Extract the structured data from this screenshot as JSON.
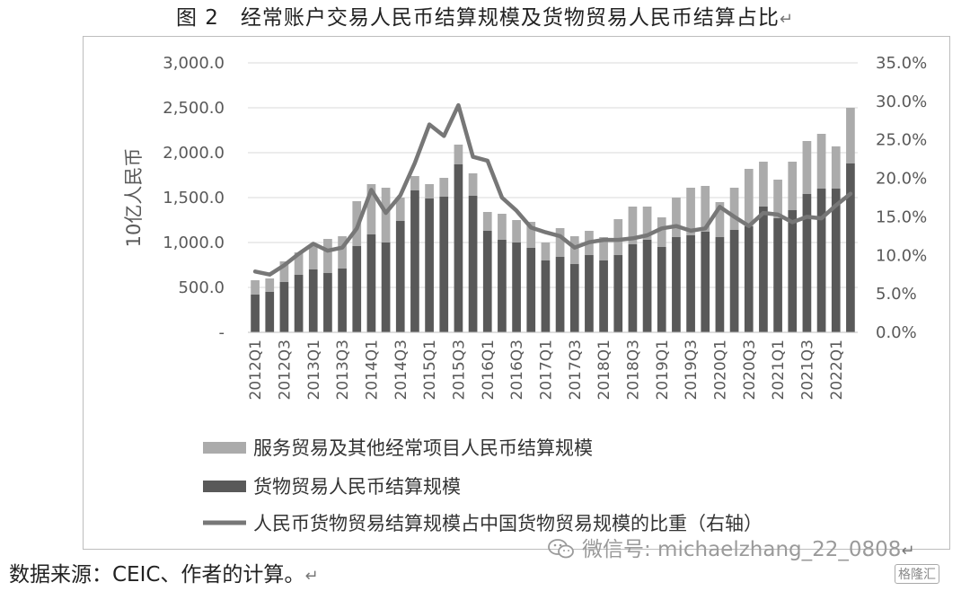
{
  "title": "图 2　经常账户交易人民币结算规模及货物贸易人民币结算占比",
  "source": "数据来源：CEIC、作者的计算。",
  "watermark": "微信号: michaelzhang_22_0808",
  "brand": "格隆汇",
  "return_mark": "↵",
  "colors": {
    "services": "#ababab",
    "goods": "#595959",
    "line": "#777777",
    "grid": "#d9d9d9",
    "axis_text": "#595959"
  },
  "chart_data": {
    "type": "bar",
    "stacked": true,
    "ylabel": "10亿人民币",
    "ylim": [
      0,
      3000
    ],
    "y_ticks": [
      "-",
      "500.0",
      "1,000.0",
      "1,500.0",
      "2,000.0",
      "2,500.0",
      "3,000.0"
    ],
    "y2lim": [
      0,
      35
    ],
    "y2_ticks": [
      "0.0%",
      "5.0%",
      "10.0%",
      "15.0%",
      "20.0%",
      "25.0%",
      "30.0%",
      "35.0%"
    ],
    "grid": true,
    "legend_position": "bottom",
    "x_tick_labels": [
      "2012Q1",
      "2012Q3",
      "2013Q1",
      "2013Q3",
      "2014Q1",
      "2014Q3",
      "2015Q1",
      "2015Q3",
      "2016Q1",
      "2016Q3",
      "2017Q1",
      "2017Q3",
      "2018Q1",
      "2018Q3",
      "2019Q1",
      "2019Q3",
      "2020Q1",
      "2020Q3",
      "2021Q1",
      "2021Q3",
      "2022Q1"
    ],
    "categories": [
      "2012Q1",
      "2012Q2",
      "2012Q3",
      "2012Q4",
      "2013Q1",
      "2013Q2",
      "2013Q3",
      "2013Q4",
      "2014Q1",
      "2014Q2",
      "2014Q3",
      "2014Q4",
      "2015Q1",
      "2015Q2",
      "2015Q3",
      "2015Q4",
      "2016Q1",
      "2016Q2",
      "2016Q3",
      "2016Q4",
      "2017Q1",
      "2017Q2",
      "2017Q3",
      "2017Q4",
      "2018Q1",
      "2018Q2",
      "2018Q3",
      "2018Q4",
      "2019Q1",
      "2019Q2",
      "2019Q3",
      "2019Q4",
      "2020Q1",
      "2020Q2",
      "2020Q3",
      "2020Q4",
      "2021Q1",
      "2021Q2",
      "2021Q3",
      "2021Q4",
      "2022Q1",
      "2022Q2"
    ],
    "series": [
      {
        "name": "货物贸易人民币结算规模",
        "kind": "bar",
        "axis": "left",
        "values": [
          420,
          450,
          560,
          640,
          700,
          660,
          710,
          960,
          1090,
          1000,
          1240,
          1580,
          1490,
          1510,
          1870,
          1520,
          1130,
          1030,
          1000,
          940,
          800,
          840,
          760,
          860,
          800,
          860,
          980,
          1030,
          950,
          1060,
          1080,
          1120,
          1060,
          1140,
          1180,
          1400,
          1270,
          1360,
          1540,
          1600,
          1600,
          1880
        ]
      },
      {
        "name": "服务贸易及其他经常项目人民币结算规模",
        "kind": "bar",
        "axis": "left",
        "values": [
          160,
          150,
          230,
          250,
          270,
          380,
          360,
          500,
          560,
          610,
          260,
          160,
          160,
          210,
          220,
          250,
          210,
          290,
          250,
          290,
          200,
          320,
          310,
          270,
          260,
          400,
          420,
          370,
          330,
          440,
          530,
          510,
          390,
          470,
          640,
          500,
          430,
          540,
          590,
          610,
          470,
          620
        ]
      },
      {
        "name": "人民币货物贸易结算规模占中国货物贸易规模的比重（右轴）",
        "kind": "line",
        "axis": "right",
        "values": [
          7.9,
          7.5,
          8.7,
          10.2,
          11.5,
          10.6,
          11.0,
          13.5,
          18.5,
          15.5,
          17.8,
          22.0,
          27.0,
          25.5,
          29.5,
          22.8,
          22.3,
          17.5,
          15.8,
          13.6,
          13.0,
          12.5,
          11.0,
          11.7,
          12.0,
          12.0,
          12.2,
          12.6,
          13.5,
          13.8,
          13.2,
          13.5,
          16.3,
          15.0,
          13.8,
          15.5,
          15.3,
          14.3,
          15.0,
          14.8,
          16.5,
          18.0
        ]
      }
    ]
  }
}
